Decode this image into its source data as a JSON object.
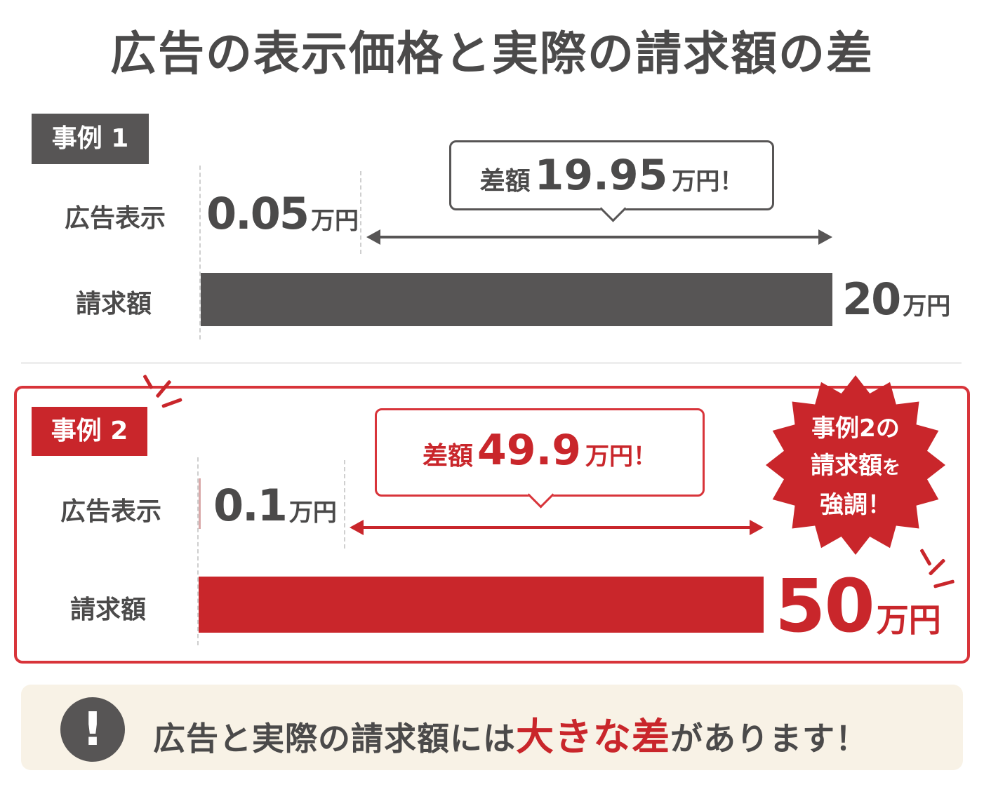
{
  "title": "広告の表示価格と実際の請求額の差",
  "colors": {
    "dark": "#575555",
    "red": "#c9262b",
    "text": "#4b4a4a",
    "note_bg": "#f8f2e6"
  },
  "chart_data": {
    "type": "bar",
    "unit": "万円",
    "cases": [
      {
        "tag": "事例 1",
        "categories": [
          "広告表示",
          "請求額"
        ],
        "values": [
          0.05,
          20
        ],
        "value_labels": [
          "0.05",
          "20"
        ],
        "difference": {
          "label": "差額",
          "value": "19.95",
          "unit": "万円",
          "suffix": "！"
        },
        "color": "#575555"
      },
      {
        "tag": "事例 2",
        "categories": [
          "広告表示",
          "請求額"
        ],
        "values": [
          0.1,
          50
        ],
        "value_labels": [
          "0.1",
          "50"
        ],
        "difference": {
          "label": "差額",
          "value": "49.9",
          "unit": "万円",
          "suffix": "！"
        },
        "color": "#c9262b"
      }
    ]
  },
  "starburst": {
    "line1": "事例2の",
    "line2a": "請求額",
    "line2b": "を",
    "line3": "強調！"
  },
  "note": {
    "icon": "!",
    "icon_name": "exclamation-icon",
    "text_before": "広告と実際の請求額には",
    "highlight": "大きな差",
    "text_after": "があります！"
  }
}
